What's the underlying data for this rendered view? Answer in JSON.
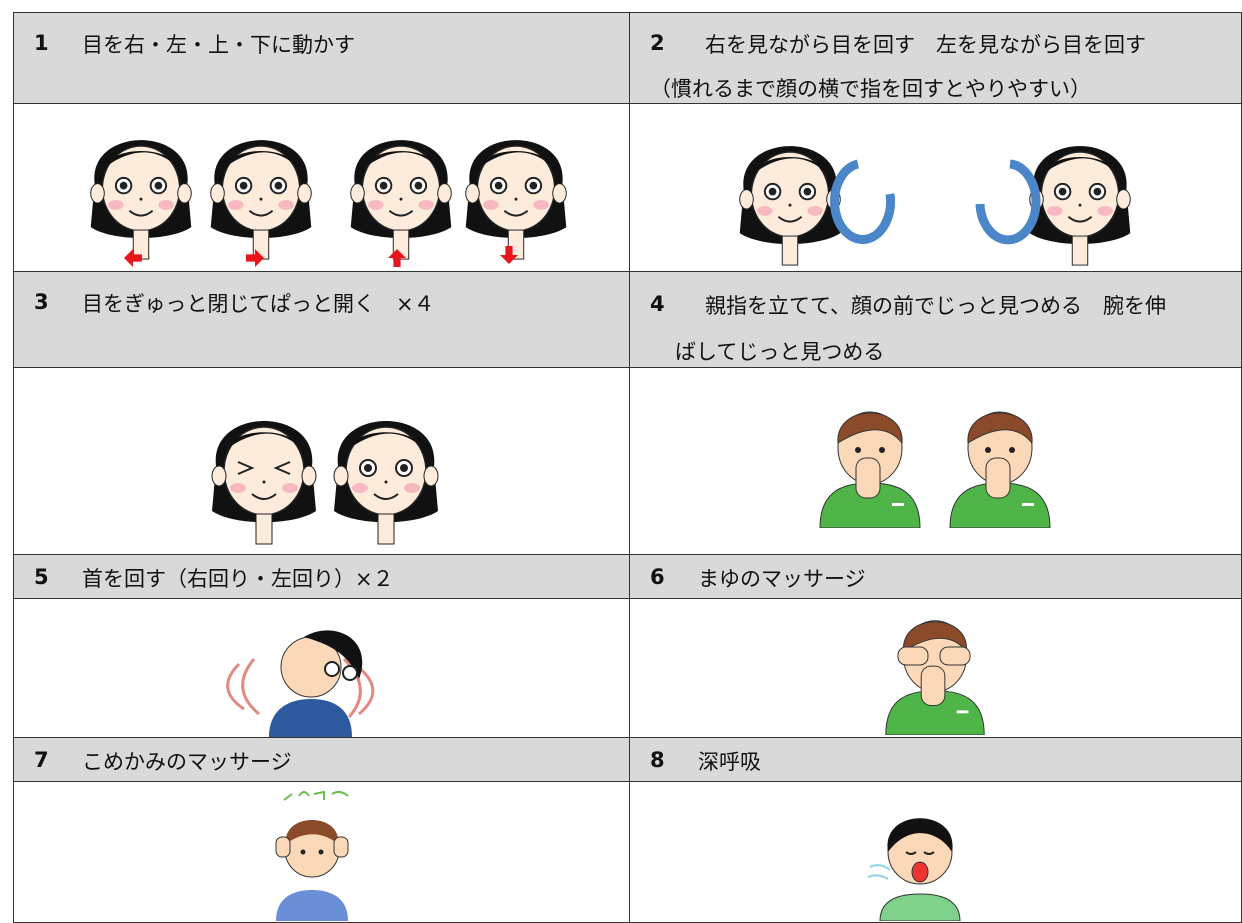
{
  "table": {
    "rows": [
      {
        "cells": [
          {
            "number": "1",
            "lines": [
              "目を右・左・上・下に動かす"
            ]
          },
          {
            "number": "2",
            "lines": [
              "右を見ながら目を回す　左を見ながら目を回す",
              "（慣れるまで顔の横で指を回すとやりやすい）"
            ]
          }
        ]
      },
      {
        "cells": [
          {
            "number": "3",
            "lines": [
              "目をぎゅっと閉じてぱっと開く　×４"
            ]
          },
          {
            "number": "4",
            "lines": [
              "親指を立てて、顔の前でじっと見つめる　腕を伸",
              "ばしてじっと見つめる"
            ]
          }
        ]
      },
      {
        "cells": [
          {
            "number": "5",
            "lines": [
              "首を回す（右回り・左回り）×２"
            ]
          },
          {
            "number": "6",
            "lines": [
              "まゆのマッサージ"
            ]
          }
        ]
      },
      {
        "cells": [
          {
            "number": "7",
            "lines": [
              "こめかみのマッサージ"
            ]
          },
          {
            "number": "8",
            "lines": [
              "深呼吸"
            ]
          }
        ]
      }
    ]
  }
}
